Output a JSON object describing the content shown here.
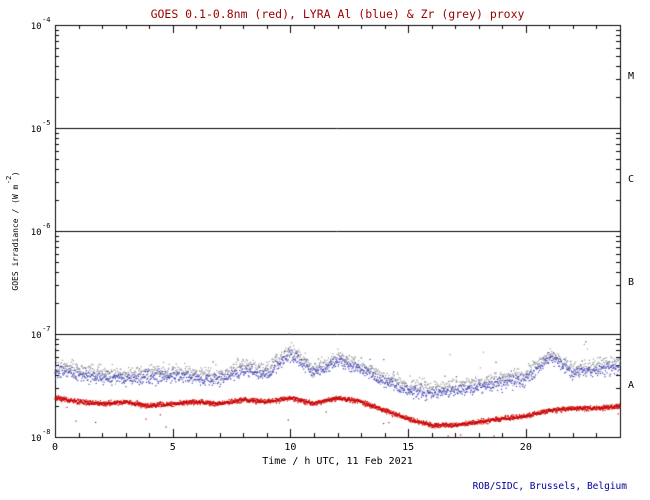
{
  "page": {
    "background": "#ffffff"
  },
  "chart_data": {
    "type": "scatter",
    "title": "GOES 0.1-0.8nm (red), LYRA Al (blue) & Zr (grey) proxy",
    "title_color": "#990000",
    "xlabel": "Time / h UTC, 11 Feb 2021",
    "ylabel_parts": {
      "pre": "GOES irradiance / (W m",
      "exp": "-2",
      "post": ")"
    },
    "credit": "ROB/SIDC, Brussels, Belgium",
    "credit_color": "#000099",
    "x_range_hours": [
      0,
      24
    ],
    "y_log_range": [
      -8,
      -4
    ],
    "x_ticks": [
      {
        "hour": 0,
        "label": "0"
      },
      {
        "hour": 5,
        "label": "5"
      },
      {
        "hour": 10,
        "label": "10"
      },
      {
        "hour": 15,
        "label": "15"
      },
      {
        "hour": 20,
        "label": "20"
      }
    ],
    "y_ticks": [
      {
        "exp": -8,
        "base": "10",
        "sup": "-8"
      },
      {
        "exp": -7,
        "base": "10",
        "sup": "-7"
      },
      {
        "exp": -6,
        "base": "10",
        "sup": "-6"
      },
      {
        "exp": -5,
        "base": "10",
        "sup": "-5"
      },
      {
        "exp": -4,
        "base": "10",
        "sup": "-4"
      }
    ],
    "hlines_exp": [
      -7,
      -6,
      -5
    ],
    "flare_classes": [
      {
        "label": "M",
        "mid_exp": -4.5
      },
      {
        "label": "C",
        "mid_exp": -5.5
      },
      {
        "label": "B",
        "mid_exp": -6.5
      },
      {
        "label": "A",
        "mid_exp": -7.5
      }
    ],
    "grid": false,
    "legend": "encoded in title colors",
    "series": [
      {
        "name": "GOES 0.1-0.8nm",
        "color": "#cc0000",
        "seed": 7,
        "cadence_min": 0.5,
        "point_size": 1.2,
        "scatter_sigma": 0.08,
        "outlier_prob": 0.004,
        "outlier_amp": -0.35,
        "hours": [
          0,
          1,
          2,
          3,
          4,
          5,
          6,
          7,
          8,
          9,
          10,
          11,
          12,
          13,
          14,
          15,
          16,
          17,
          18,
          19,
          20,
          21,
          22,
          23,
          24
        ],
        "values_wm2": [
          2.4e-08,
          2.2e-08,
          2.1e-08,
          2.2e-08,
          2e-08,
          2.1e-08,
          2.2e-08,
          2.1e-08,
          2.3e-08,
          2.2e-08,
          2.4e-08,
          2.1e-08,
          2.4e-08,
          2.2e-08,
          1.8e-08,
          1.5e-08,
          1.3e-08,
          1.3e-08,
          1.4e-08,
          1.5e-08,
          1.6e-08,
          1.8e-08,
          1.9e-08,
          1.9e-08,
          2e-08
        ]
      },
      {
        "name": "LYRA Al",
        "color": "#4444bb",
        "seed": 13,
        "cadence_min": 1,
        "point_size": 1.2,
        "scatter_sigma": 0.22,
        "outlier_prob": 0.006,
        "outlier_amp": 0.45,
        "hours": [
          0,
          1,
          2,
          3,
          4,
          5,
          6,
          7,
          8,
          9,
          10,
          11,
          12,
          13,
          14,
          15,
          16,
          17,
          18,
          19,
          20,
          21,
          22,
          23,
          24
        ],
        "values_wm2": [
          4.5e-08,
          4e-08,
          3.8e-08,
          3.6e-08,
          3.8e-08,
          4e-08,
          3.7e-08,
          3.6e-08,
          4.4e-08,
          4e-08,
          6.5e-08,
          4.2e-08,
          5.5e-08,
          4.5e-08,
          3.4e-08,
          2.8e-08,
          2.6e-08,
          2.8e-08,
          3e-08,
          3.3e-08,
          3.6e-08,
          6e-08,
          4.2e-08,
          4.4e-08,
          4.8e-08
        ]
      },
      {
        "name": "LYRA Zr proxy",
        "color": "#999999",
        "seed": 29,
        "cadence_min": 1,
        "point_size": 1.2,
        "scatter_sigma": 0.25,
        "outlier_prob": 0.006,
        "outlier_amp": 0.45,
        "hours": [
          0,
          1,
          2,
          3,
          4,
          5,
          6,
          7,
          8,
          9,
          10,
          11,
          12,
          13,
          14,
          15,
          16,
          17,
          18,
          19,
          20,
          21,
          22,
          23,
          24
        ],
        "values_wm2": [
          5e-08,
          4.5e-08,
          4.2e-08,
          4e-08,
          4.2e-08,
          4.4e-08,
          4.1e-08,
          4e-08,
          5e-08,
          4.5e-08,
          7e-08,
          4.6e-08,
          6e-08,
          5e-08,
          3.8e-08,
          3.2e-08,
          3e-08,
          3.2e-08,
          3.4e-08,
          3.7e-08,
          4e-08,
          6.5e-08,
          4.6e-08,
          5e-08,
          5.4e-08
        ]
      }
    ]
  }
}
